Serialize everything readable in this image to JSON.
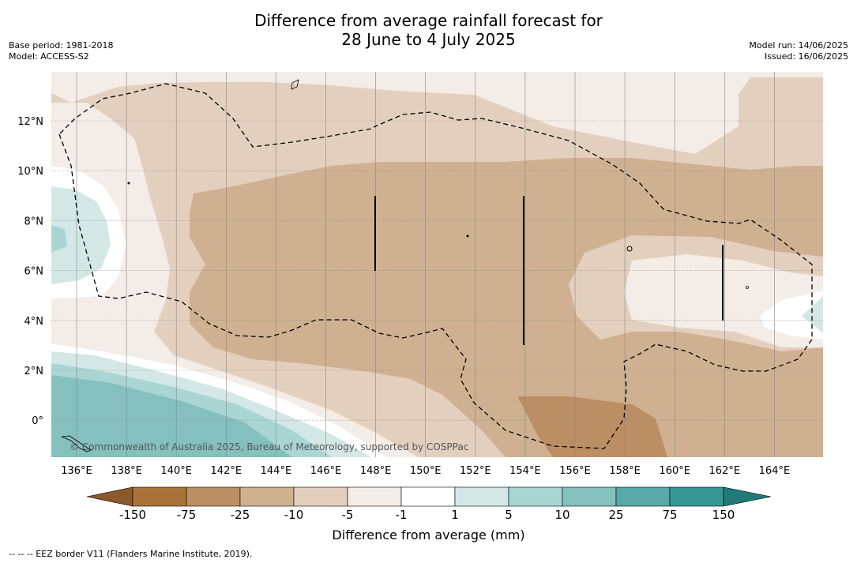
{
  "title_line1": "Difference from average rainfall forecast for",
  "title_line2": "28 June to 4 July 2025",
  "base_period": "Base period: 1981-2018",
  "model": "Model: ACCESS-S2",
  "model_run": "Model run: 14/06/2025",
  "issued": "Issued: 16/06/2025",
  "x_ticks": [
    "136°E",
    "138°E",
    "140°E",
    "142°E",
    "144°E",
    "146°E",
    "148°E",
    "150°E",
    "152°E",
    "154°E",
    "156°E",
    "158°E",
    "160°E",
    "162°E",
    "164°E"
  ],
  "y_ticks": [
    "12°N",
    "10°N",
    "8°N",
    "6°N",
    "4°N",
    "2°N",
    "0°"
  ],
  "copyright": "© Commonwealth of Australia 2025, Bureau of Meteorology, supported by COSPPac",
  "legend": {
    "title": "Difference from average (mm)",
    "ticks": [
      "-150",
      "-75",
      "-25",
      "-10",
      "-5",
      "-1",
      "1",
      "5",
      "10",
      "25",
      "75",
      "150"
    ],
    "colors": [
      "#8b5a2b",
      "#a97439",
      "#bb8f63",
      "#cfb091",
      "#e3cfbe",
      "#f4ece6",
      "#ffffff",
      "#d3e8e6",
      "#a9d5d2",
      "#83c0be",
      "#58a9a7",
      "#379895",
      "#1f7a78"
    ]
  },
  "footnote": "--  --  -- EEZ border V11 (Flanders Marine Institute, 2019)."
}
